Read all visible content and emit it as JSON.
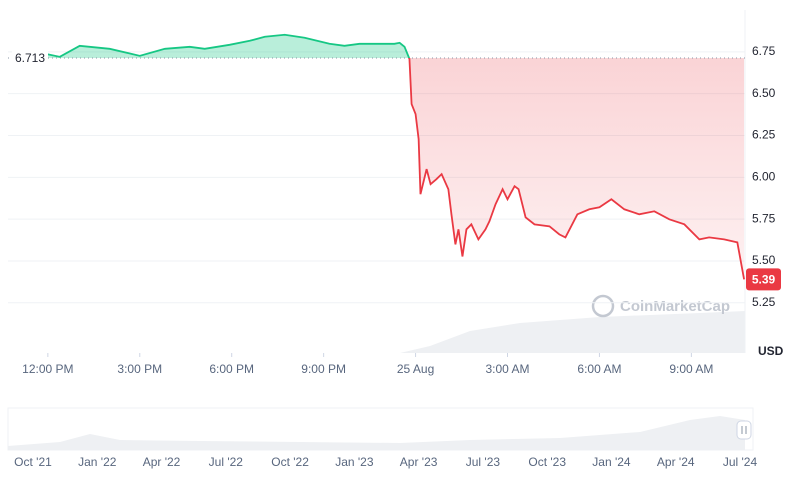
{
  "chart_data": {
    "type": "line",
    "x": [
      11.93,
      12.39,
      13.04,
      14.02,
      15.0,
      15.82,
      16.63,
      17.12,
      17.93,
      18.59,
      19.08,
      19.73,
      20.38,
      21.19,
      21.68,
      22.17,
      23.31,
      23.48,
      23.64,
      23.8,
      23.87,
      24.0,
      24.1,
      24.16,
      24.36,
      24.49,
      24.68,
      24.85,
      25.07,
      25.17,
      25.3,
      25.4,
      25.53,
      25.66,
      25.82,
      26.05,
      26.28,
      26.41,
      26.61,
      26.84,
      27.0,
      27.23,
      27.36,
      27.59,
      27.88,
      28.37,
      28.69,
      28.89,
      29.28,
      29.67,
      30.0,
      30.39,
      30.81,
      31.3,
      31.79,
      32.28,
      32.77,
      33.26,
      33.58,
      34.07,
      34.5,
      34.72
    ],
    "values": [
      6.738,
      6.72,
      6.786,
      6.768,
      6.726,
      6.768,
      6.78,
      6.768,
      6.792,
      6.816,
      6.84,
      6.852,
      6.834,
      6.798,
      6.786,
      6.798,
      6.798,
      6.804,
      6.78,
      6.708,
      6.438,
      6.378,
      6.228,
      5.899,
      6.049,
      5.959,
      5.989,
      6.019,
      5.929,
      5.779,
      5.599,
      5.689,
      5.527,
      5.689,
      5.719,
      5.629,
      5.689,
      5.737,
      5.839,
      5.929,
      5.869,
      5.947,
      5.929,
      5.761,
      5.719,
      5.707,
      5.659,
      5.641,
      5.779,
      5.809,
      5.821,
      5.869,
      5.809,
      5.779,
      5.797,
      5.749,
      5.719,
      5.629,
      5.641,
      5.629,
      5.611,
      5.39
    ],
    "baseline": 6.713,
    "current_price": 5.39,
    "up_color": "#16c784",
    "down_color": "#ea3943",
    "xlim": [
      10.7,
      34.75
    ],
    "xticks": [
      {
        "value": 12,
        "label": "12:00 PM"
      },
      {
        "value": 15,
        "label": "3:00 PM"
      },
      {
        "value": 18,
        "label": "6:00 PM"
      },
      {
        "value": 21,
        "label": "9:00 PM"
      },
      {
        "value": 24,
        "label": "25 Aug"
      },
      {
        "value": 27,
        "label": "3:00 AM"
      },
      {
        "value": 30,
        "label": "6:00 AM"
      },
      {
        "value": 33,
        "label": "9:00 AM"
      }
    ],
    "ylim": [
      4.95,
      7.0
    ],
    "yticks": [
      5.25,
      {
        "value": 5.5,
        "label": "5.50"
      },
      5.75,
      {
        "value": 6.0,
        "label": "6.00"
      },
      6.25,
      {
        "value": 6.5,
        "label": "6.50"
      },
      6.75
    ],
    "y_unit": "USD",
    "grid": true,
    "watermark": "CoinMarketCap",
    "navigator_labels": [
      "Oct '21",
      "Jan '22",
      "Apr '22",
      "Jul '22",
      "Oct '22",
      "Jan '23",
      "Apr '23",
      "Jul '23",
      "Oct '23",
      "Jan '24",
      "Apr '24",
      "Jul '24"
    ]
  }
}
